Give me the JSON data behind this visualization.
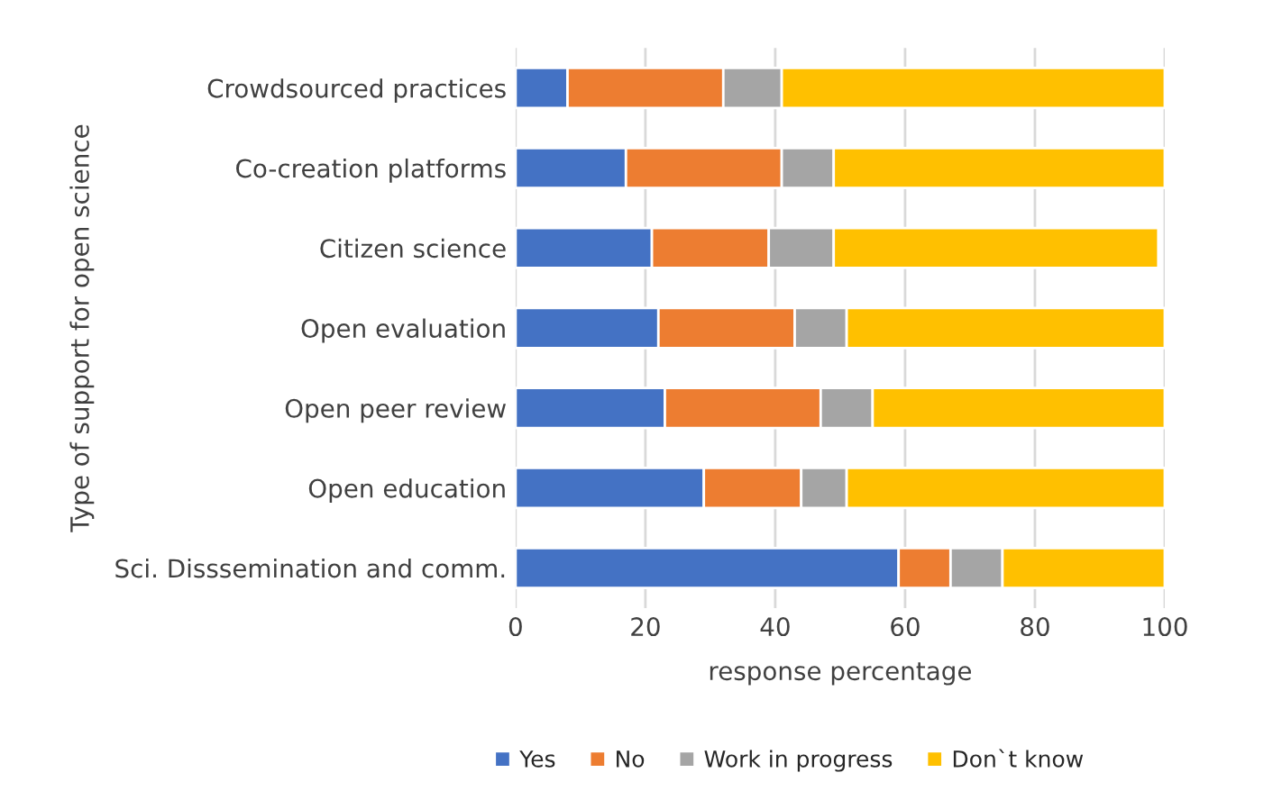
{
  "chart_data": {
    "type": "bar",
    "orientation": "horizontal",
    "stacked": true,
    "categories": [
      "Crowdsourced practices",
      "Co-creation platforms",
      "Citizen science",
      "Open evaluation",
      "Open peer review",
      "Open education",
      "Sci. Disssemination and comm."
    ],
    "series": [
      {
        "name": "Yes",
        "color": "#4472c4",
        "values": [
          8,
          17,
          21,
          22,
          23,
          29,
          59
        ]
      },
      {
        "name": "No",
        "color": "#ed7d31",
        "values": [
          24,
          24,
          18,
          21,
          24,
          15,
          8
        ]
      },
      {
        "name": "Work in progress",
        "color": "#a5a5a5",
        "values": [
          9,
          8,
          10,
          8,
          8,
          7,
          8
        ]
      },
      {
        "name": "Don`t know",
        "color": "#ffc000",
        "values": [
          59,
          51,
          50,
          49,
          45,
          49,
          25
        ]
      }
    ],
    "xlim": [
      0,
      100
    ],
    "xticks": [
      0,
      20,
      40,
      60,
      80,
      100
    ],
    "xlabel": "response percentage",
    "ylabel": "Type of support for open science",
    "grid": "x",
    "legend": "bottom"
  }
}
